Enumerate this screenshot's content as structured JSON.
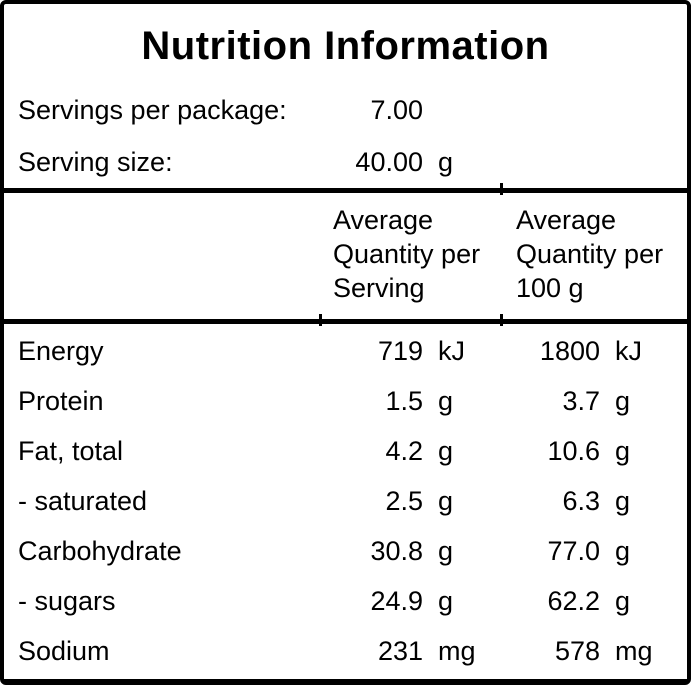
{
  "panel": {
    "title": "Nutrition Information",
    "servings_per_package": {
      "label": "Servings per package:",
      "value": "7.00"
    },
    "serving_size": {
      "label": "Serving size:",
      "value": "40.00",
      "unit": "g"
    },
    "column_headers": {
      "per_serving": "Average Quantity per Serving",
      "per_100g": "Average Quantity per 100 g"
    },
    "rows": [
      {
        "label": "Energy",
        "per_serving": "719",
        "unit1": "kJ",
        "per_100g": "1800",
        "unit2": "kJ"
      },
      {
        "label": "Protein",
        "per_serving": "1.5",
        "unit1": "g",
        "per_100g": "3.7",
        "unit2": "g"
      },
      {
        "label": "Fat, total",
        "per_serving": "4.2",
        "unit1": "g",
        "per_100g": "10.6",
        "unit2": "g"
      },
      {
        "label": "- saturated",
        "per_serving": "2.5",
        "unit1": "g",
        "per_100g": "6.3",
        "unit2": "g"
      },
      {
        "label": "Carbohydrate",
        "per_serving": "30.8",
        "unit1": "g",
        "per_100g": "77.0",
        "unit2": "g"
      },
      {
        "label": "- sugars",
        "per_serving": "24.9",
        "unit1": "g",
        "per_100g": "62.2",
        "unit2": "g"
      },
      {
        "label": "Sodium",
        "per_serving": "231",
        "unit1": "mg",
        "per_100g": "578",
        "unit2": "mg"
      }
    ],
    "colors": {
      "border": "#000000",
      "background": "#ffffff",
      "text": "#000000"
    }
  }
}
